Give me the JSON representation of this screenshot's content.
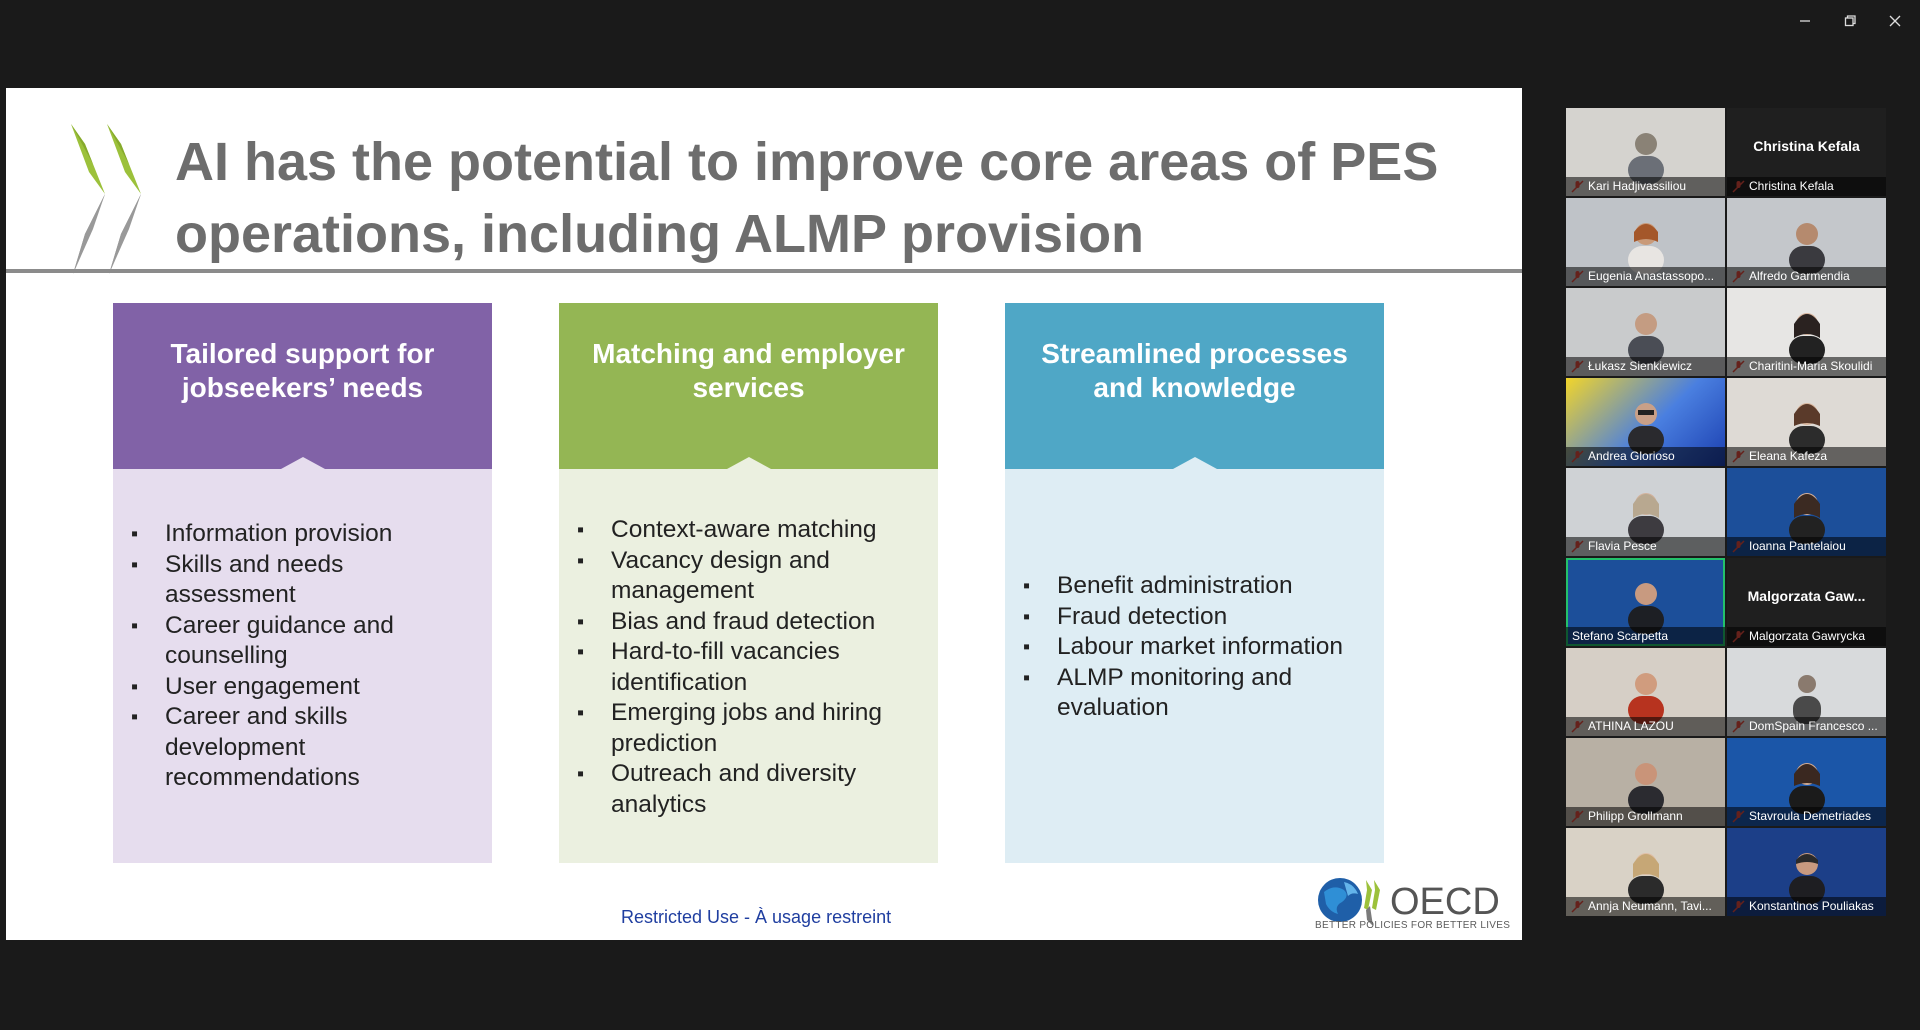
{
  "window": {
    "controls": [
      "minimize-icon",
      "restore-icon",
      "close-icon"
    ]
  },
  "slide": {
    "title": "AI has the potential to improve core areas of PES operations, including ALMP provision",
    "columns": [
      {
        "heading": "Tailored support for jobseekers’ needs",
        "head_color": "#8162a7",
        "body_color": "#e6ddee",
        "items": [
          "Information provision",
          "Skills and needs assessment",
          "Career guidance and counselling",
          "User engagement",
          "Career and skills development recommendations"
        ]
      },
      {
        "heading": "Matching and employer services",
        "head_color": "#94b654",
        "body_color": "#ebf0e0",
        "items": [
          "Context-aware matching",
          "Vacancy design and management",
          "Bias and fraud detection",
          "Hard-to-fill vacancies identification",
          "Emerging jobs and hiring prediction",
          "Outreach and diversity analytics"
        ]
      },
      {
        "heading": "Streamlined processes and knowledge",
        "head_color": "#4fa7c6",
        "body_color": "#deedf4",
        "items": [
          "Benefit administration",
          "Fraud detection",
          "Labour market information",
          "ALMP monitoring and evaluation"
        ]
      }
    ],
    "footer": "Restricted Use - À usage restreint",
    "logo_text": "OECD",
    "logo_tagline": "BETTER POLICIES FOR BETTER LIVES"
  },
  "participants": [
    {
      "name": "Kari Hadjivassiliou",
      "muted": true
    },
    {
      "name": "Christina Kefala",
      "muted": true,
      "display_name": "Christina Kefala"
    },
    {
      "name": "Eugenia Anastassopo...",
      "muted": true
    },
    {
      "name": "Alfredo Garmendia",
      "muted": true
    },
    {
      "name": "Łukasz Sienkiewicz",
      "muted": true
    },
    {
      "name": "Charitini-Maria Skoulidi",
      "muted": true
    },
    {
      "name": "Andrea Glorioso",
      "muted": true
    },
    {
      "name": "Eleana Kafeza",
      "muted": true
    },
    {
      "name": "Flavia Pesce",
      "muted": true
    },
    {
      "name": "Ioanna Pantelaiou",
      "muted": true
    },
    {
      "name": "Stefano Scarpetta",
      "muted": false,
      "active_speaker": true
    },
    {
      "name": "Malgorzata Gawrycka",
      "muted": true,
      "display_name": "Malgorzata  Gaw..."
    },
    {
      "name": "ATHINA LAZOU",
      "muted": true
    },
    {
      "name": "DomSpain Francesco ...",
      "muted": true
    },
    {
      "name": "Philipp Grollmann",
      "muted": true
    },
    {
      "name": "Stavroula Demetriades",
      "muted": true
    },
    {
      "name": "Annja Neumann, Tavi...",
      "muted": true
    },
    {
      "name": "Konstantinos Pouliakas",
      "muted": true
    }
  ]
}
